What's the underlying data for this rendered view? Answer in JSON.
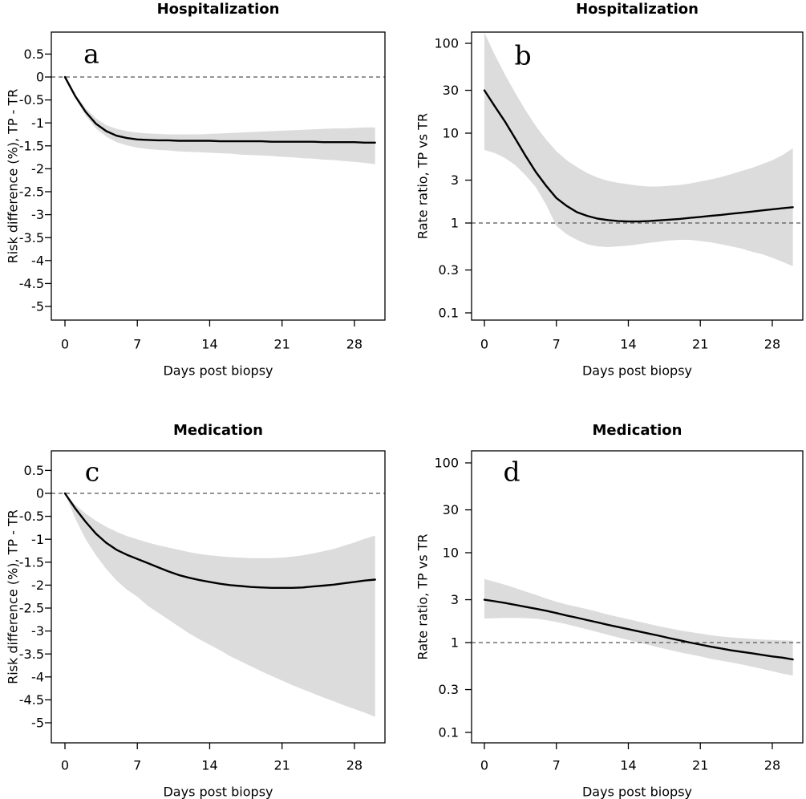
{
  "colors": {
    "line": "#000000",
    "ci_band": "#DCDCDC",
    "reference_line": "#555555",
    "frame": "#000000",
    "text": "#000000",
    "background": "#FFFFFF"
  },
  "chart_data": [
    {
      "type": "line",
      "panel_letter": "a",
      "title": "Hospitalization",
      "xlabel": "Days post biopsy",
      "ylabel": "Risk difference (%), TP - TR",
      "yscale": "linear",
      "reference_y": 0,
      "xticks": [
        0,
        7,
        14,
        21,
        28
      ],
      "yticks": [
        0.5,
        0,
        -0.5,
        -1,
        -1.5,
        -2,
        -2.5,
        -3,
        -3.5,
        -4,
        -4.5,
        -5
      ],
      "ylim": [
        -5.3,
        0.97
      ],
      "xlim": [
        -1.3,
        31
      ],
      "grid": false,
      "legend": "none",
      "x": [
        0,
        1,
        2,
        3,
        4,
        5,
        6,
        7,
        8,
        9,
        10,
        11,
        12,
        13,
        14,
        15,
        16,
        17,
        18,
        19,
        20,
        21,
        22,
        23,
        24,
        25,
        26,
        27,
        28,
        29,
        30
      ],
      "estimate": [
        0,
        -0.42,
        -0.76,
        -1.02,
        -1.18,
        -1.28,
        -1.33,
        -1.36,
        -1.37,
        -1.38,
        -1.38,
        -1.39,
        -1.39,
        -1.39,
        -1.39,
        -1.4,
        -1.4,
        -1.4,
        -1.4,
        -1.4,
        -1.41,
        -1.41,
        -1.41,
        -1.41,
        -1.41,
        -1.42,
        -1.42,
        -1.42,
        -1.42,
        -1.43,
        -1.43
      ],
      "ci_upper": [
        0,
        -0.38,
        -0.68,
        -0.9,
        -1.05,
        -1.13,
        -1.18,
        -1.21,
        -1.23,
        -1.24,
        -1.25,
        -1.25,
        -1.25,
        -1.25,
        -1.24,
        -1.23,
        -1.22,
        -1.21,
        -1.2,
        -1.19,
        -1.18,
        -1.17,
        -1.16,
        -1.15,
        -1.14,
        -1.13,
        -1.12,
        -1.12,
        -1.11,
        -1.1,
        -1.1
      ],
      "ci_lower": [
        0,
        -0.46,
        -0.84,
        -1.12,
        -1.3,
        -1.42,
        -1.49,
        -1.54,
        -1.57,
        -1.59,
        -1.6,
        -1.62,
        -1.63,
        -1.64,
        -1.65,
        -1.66,
        -1.67,
        -1.69,
        -1.7,
        -1.71,
        -1.72,
        -1.74,
        -1.75,
        -1.77,
        -1.78,
        -1.8,
        -1.81,
        -1.83,
        -1.85,
        -1.87,
        -1.9
      ]
    },
    {
      "type": "line",
      "panel_letter": "b",
      "title": "Hospitalization",
      "xlabel": "Days post biopsy",
      "ylabel": "Rate ratio, TP vs TR",
      "yscale": "log",
      "reference_y": 1,
      "xticks": [
        0,
        7,
        14,
        21,
        28
      ],
      "yticks": [
        100,
        30,
        10,
        3,
        1,
        0.3,
        0.1
      ],
      "ylim": [
        0.082,
        133
      ],
      "xlim": [
        -0.8,
        31
      ],
      "grid": false,
      "legend": "none",
      "x": [
        0,
        1,
        2,
        3,
        4,
        5,
        6,
        7,
        8,
        9,
        10,
        11,
        12,
        13,
        14,
        15,
        16,
        17,
        18,
        19,
        20,
        21,
        22,
        23,
        24,
        25,
        26,
        27,
        28,
        29,
        30
      ],
      "estimate": [
        30,
        20,
        13.5,
        8.7,
        5.6,
        3.7,
        2.6,
        1.9,
        1.55,
        1.32,
        1.2,
        1.12,
        1.08,
        1.05,
        1.04,
        1.04,
        1.05,
        1.07,
        1.09,
        1.11,
        1.14,
        1.17,
        1.2,
        1.23,
        1.27,
        1.3,
        1.34,
        1.38,
        1.42,
        1.46,
        1.5
      ],
      "ci_upper": [
        135,
        75,
        45,
        28,
        18,
        12,
        8.5,
        6.3,
        5,
        4.2,
        3.6,
        3.2,
        2.95,
        2.8,
        2.7,
        2.6,
        2.55,
        2.55,
        2.6,
        2.65,
        2.75,
        2.9,
        3.05,
        3.25,
        3.5,
        3.8,
        4.1,
        4.5,
        5,
        5.7,
        6.8
      ],
      "ci_lower": [
        6.5,
        6,
        5.3,
        4.4,
        3.4,
        2.5,
        1.6,
        0.93,
        0.75,
        0.65,
        0.58,
        0.55,
        0.54,
        0.55,
        0.56,
        0.58,
        0.6,
        0.62,
        0.64,
        0.65,
        0.65,
        0.63,
        0.61,
        0.58,
        0.55,
        0.52,
        0.48,
        0.45,
        0.41,
        0.37,
        0.33
      ]
    },
    {
      "type": "line",
      "panel_letter": "c",
      "title": "Medication",
      "xlabel": "Days post biopsy",
      "ylabel": "Risk difference (%), TP - TR",
      "yscale": "linear",
      "reference_y": 0,
      "xticks": [
        0,
        7,
        14,
        21,
        28
      ],
      "yticks": [
        0.5,
        0,
        -0.5,
        -1,
        -1.5,
        -2,
        -2.5,
        -3,
        -3.5,
        -4,
        -4.5,
        -5
      ],
      "ylim": [
        -5.45,
        0.93
      ],
      "xlim": [
        -1.3,
        31
      ],
      "grid": false,
      "legend": "none",
      "x": [
        0,
        1,
        2,
        3,
        4,
        5,
        6,
        7,
        8,
        9,
        10,
        11,
        12,
        13,
        14,
        15,
        16,
        17,
        18,
        19,
        20,
        21,
        22,
        23,
        24,
        25,
        26,
        27,
        28,
        29,
        30
      ],
      "estimate": [
        0,
        -0.33,
        -0.62,
        -0.88,
        -1.08,
        -1.23,
        -1.34,
        -1.43,
        -1.52,
        -1.61,
        -1.7,
        -1.78,
        -1.84,
        -1.89,
        -1.93,
        -1.97,
        -2,
        -2.02,
        -2.04,
        -2.05,
        -2.06,
        -2.06,
        -2.06,
        -2.05,
        -2.03,
        -2.01,
        -1.99,
        -1.96,
        -1.93,
        -1.9,
        -1.88
      ],
      "ci_upper": [
        0,
        -0.25,
        -0.44,
        -0.6,
        -0.73,
        -0.84,
        -0.93,
        -1,
        -1.07,
        -1.13,
        -1.18,
        -1.23,
        -1.28,
        -1.32,
        -1.35,
        -1.37,
        -1.39,
        -1.4,
        -1.41,
        -1.41,
        -1.41,
        -1.4,
        -1.38,
        -1.35,
        -1.31,
        -1.26,
        -1.21,
        -1.14,
        -1.07,
        -0.99,
        -0.92
      ],
      "ci_lower": [
        0,
        -0.55,
        -1,
        -1.35,
        -1.65,
        -1.9,
        -2.1,
        -2.25,
        -2.45,
        -2.6,
        -2.75,
        -2.9,
        -3.05,
        -3.18,
        -3.3,
        -3.42,
        -3.55,
        -3.66,
        -3.77,
        -3.88,
        -3.98,
        -4.08,
        -4.18,
        -4.27,
        -4.36,
        -4.45,
        -4.53,
        -4.62,
        -4.7,
        -4.78,
        -4.87
      ]
    },
    {
      "type": "line",
      "panel_letter": "d",
      "title": "Medication",
      "xlabel": "Days post biopsy",
      "ylabel": "Rate ratio, TP vs TR",
      "yscale": "log",
      "reference_y": 1,
      "xticks": [
        0,
        7,
        14,
        21,
        28
      ],
      "yticks": [
        100,
        30,
        10,
        3,
        1,
        0.3,
        0.1
      ],
      "ylim": [
        0.079,
        136
      ],
      "xlim": [
        -0.8,
        31
      ],
      "grid": false,
      "legend": "none",
      "x": [
        0,
        1,
        2,
        3,
        4,
        5,
        6,
        7,
        8,
        9,
        10,
        11,
        12,
        13,
        14,
        15,
        16,
        17,
        18,
        19,
        20,
        21,
        22,
        23,
        24,
        25,
        26,
        27,
        28,
        29,
        30
      ],
      "estimate": [
        3,
        2.88,
        2.76,
        2.63,
        2.5,
        2.38,
        2.26,
        2.13,
        2,
        1.89,
        1.78,
        1.68,
        1.58,
        1.49,
        1.41,
        1.33,
        1.26,
        1.19,
        1.12,
        1.06,
        1,
        0.95,
        0.9,
        0.86,
        0.82,
        0.79,
        0.76,
        0.73,
        0.7,
        0.68,
        0.65
      ],
      "ci_upper": [
        5.1,
        4.75,
        4.4,
        4.05,
        3.7,
        3.4,
        3.1,
        2.85,
        2.65,
        2.5,
        2.35,
        2.2,
        2.05,
        1.93,
        1.82,
        1.71,
        1.61,
        1.52,
        1.44,
        1.37,
        1.31,
        1.26,
        1.21,
        1.17,
        1.14,
        1.12,
        1.1,
        1.08,
        1.07,
        1.06,
        1.05
      ],
      "ci_lower": [
        1.85,
        1.87,
        1.88,
        1.88,
        1.87,
        1.84,
        1.78,
        1.7,
        1.6,
        1.5,
        1.4,
        1.31,
        1.22,
        1.14,
        1.07,
        1,
        0.94,
        0.88,
        0.83,
        0.78,
        0.74,
        0.7,
        0.66,
        0.63,
        0.6,
        0.57,
        0.54,
        0.51,
        0.48,
        0.45,
        0.43
      ]
    }
  ]
}
